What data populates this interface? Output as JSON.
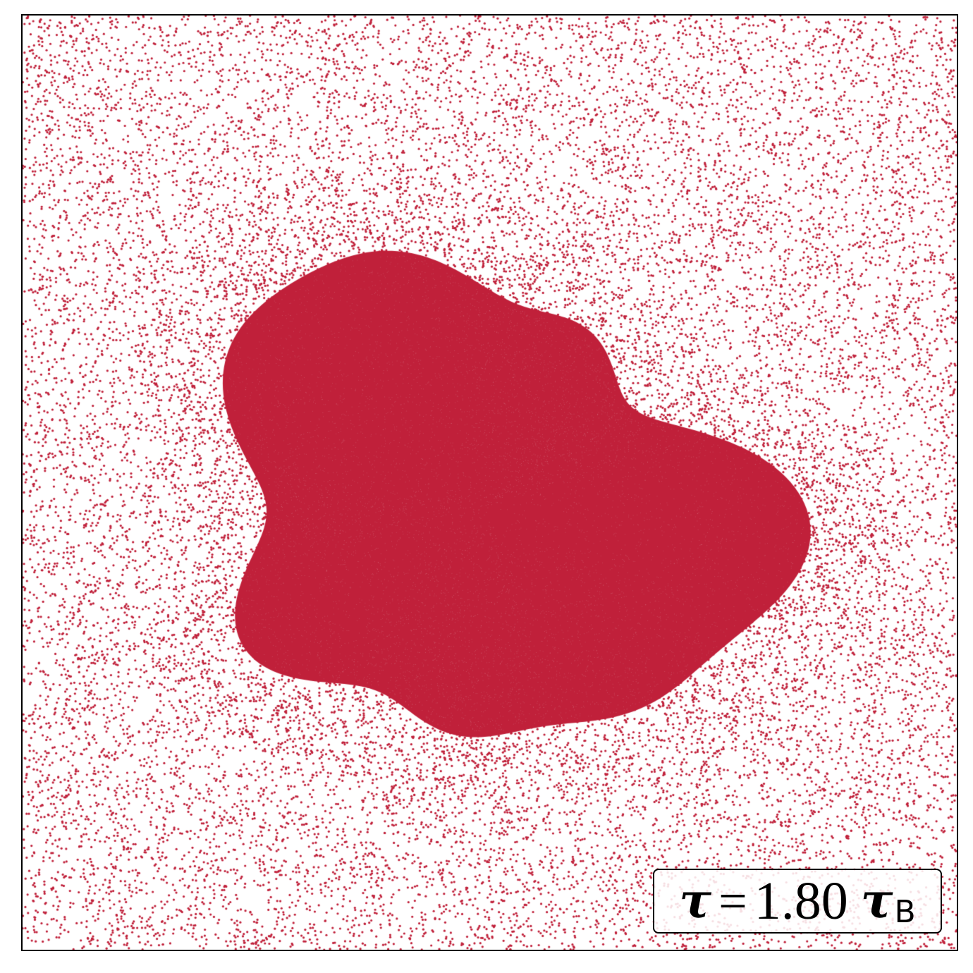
{
  "image": {
    "particle_color": "#c0203a",
    "frame_color": "#000000",
    "background_color": "#ffffff"
  },
  "label": {
    "symbol": "τ",
    "equals": "=",
    "value": "1.80",
    "unit_symbol": "τ",
    "unit_subscript": "B"
  }
}
